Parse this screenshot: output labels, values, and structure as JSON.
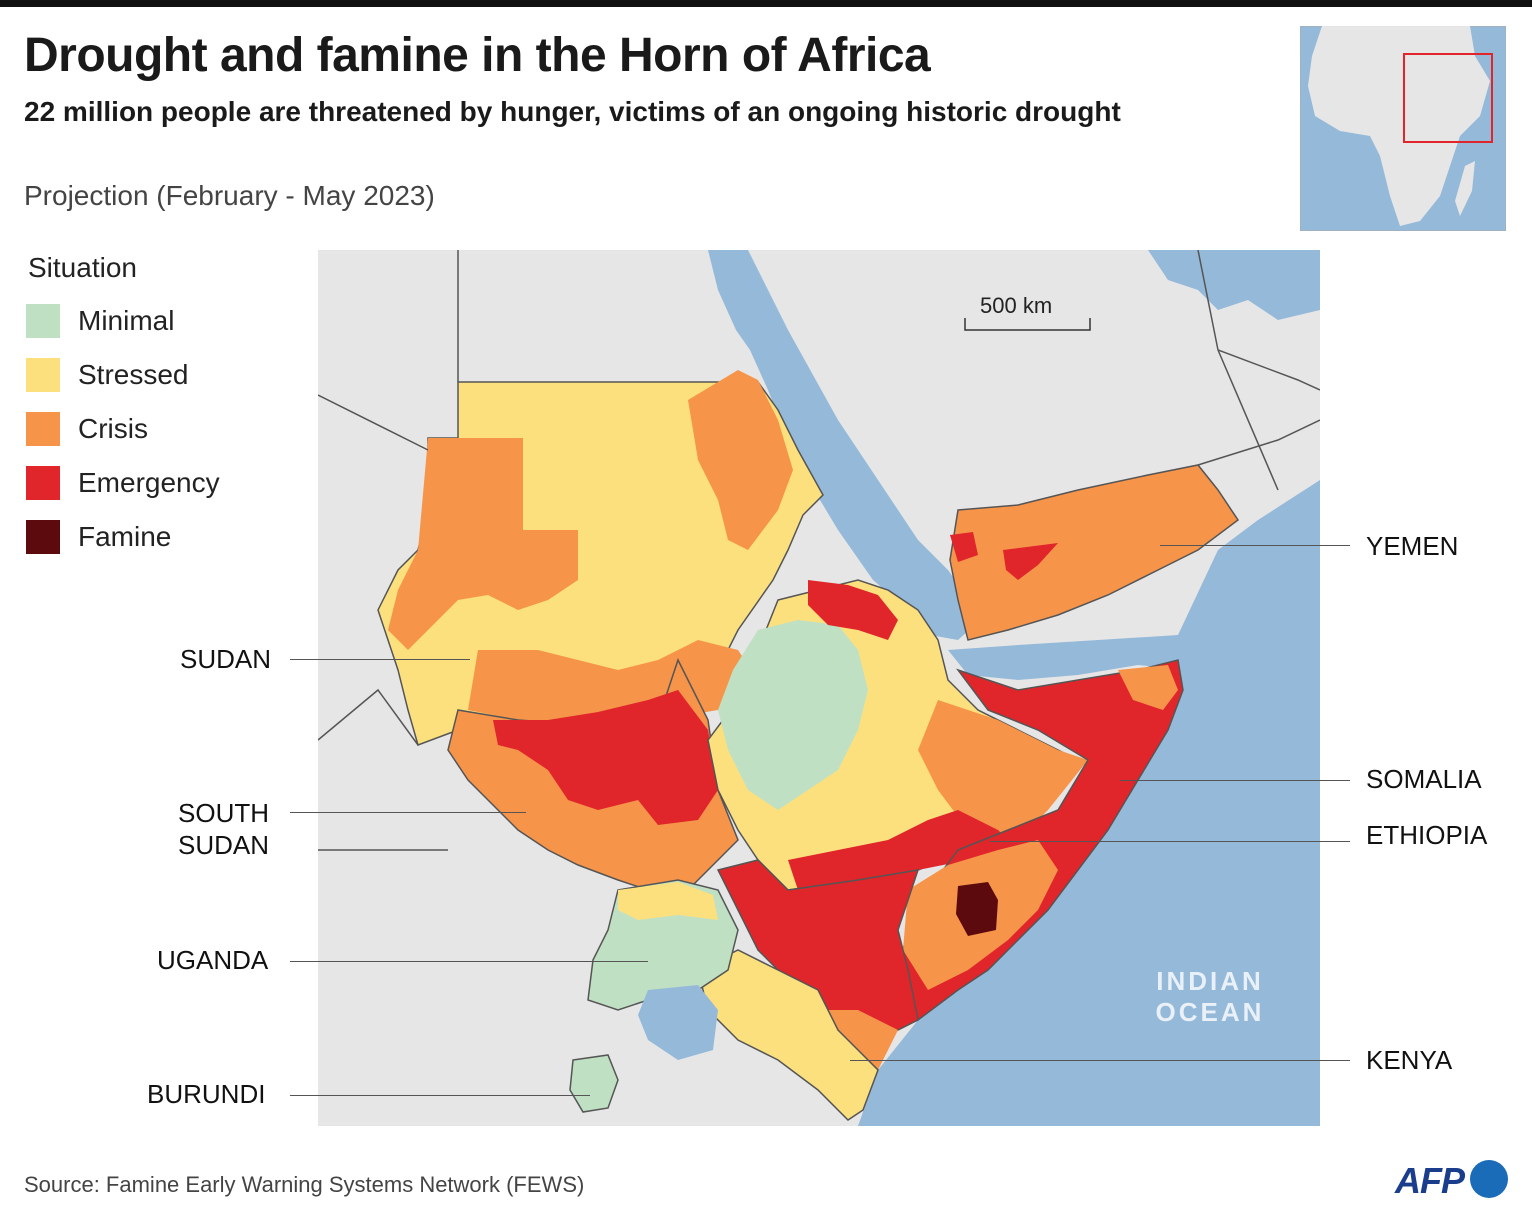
{
  "header": {
    "title": "Drought and famine in the Horn of Africa",
    "subtitle": "22 million people are threatened by hunger, victims of an ongoing historic drought",
    "projection": "Projection (February - May 2023)"
  },
  "legend": {
    "title": "Situation",
    "items": [
      {
        "label": "Minimal",
        "color": "#bfe0c3"
      },
      {
        "label": "Stressed",
        "color": "#fde07e"
      },
      {
        "label": "Crisis",
        "color": "#f6944a"
      },
      {
        "label": "Emergency",
        "color": "#e0262a"
      },
      {
        "label": "Famine",
        "color": "#5c0a0d"
      }
    ]
  },
  "map": {
    "scale_label": "500 km",
    "ocean_label_line1": "INDIAN",
    "ocean_label_line2": "OCEAN",
    "colors": {
      "land": "#e6e6e6",
      "water": "#95b9d9",
      "border": "#555555",
      "inset_highlight": "#e0262a"
    },
    "countries": {
      "sudan": "SUDAN",
      "south_sudan_line1": "SOUTH",
      "south_sudan_line2": "SUDAN",
      "uganda": "UGANDA",
      "burundi": "BURUNDI",
      "yemen": "YEMEN",
      "somalia": "SOMALIA",
      "ethiopia": "ETHIOPIA",
      "kenya": "KENYA"
    }
  },
  "footer": {
    "source": "Source: Famine Early Warning Systems Network (FEWS)",
    "logo_text": "AFP"
  }
}
